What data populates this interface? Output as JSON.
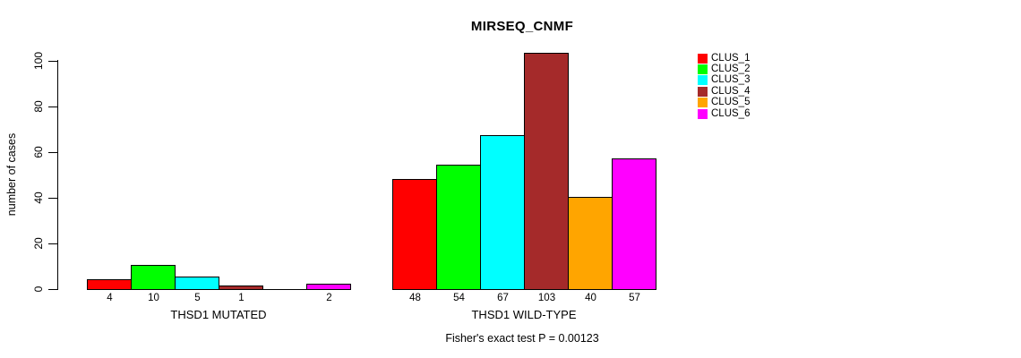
{
  "title": "MIRSEQ_CNMF",
  "footer": "Fisher's exact test P = 0.00123",
  "chart_data": {
    "type": "bar",
    "title": "MIRSEQ_CNMF",
    "xlabel": "",
    "ylabel": "number of cases",
    "ylim": [
      0,
      100
    ],
    "yticks": [
      0,
      20,
      40,
      60,
      80,
      100
    ],
    "grid": false,
    "legend_position": "top-right",
    "categories": [
      "CLUS_1",
      "CLUS_2",
      "CLUS_3",
      "CLUS_4",
      "CLUS_5",
      "CLUS_6"
    ],
    "colors": [
      "#ff0000",
      "#00ff00",
      "#00ffff",
      "#a52a2a",
      "#ffa500",
      "#ff00ff"
    ],
    "groups": [
      {
        "label": "THSD1 MUTATED",
        "values": [
          4,
          10,
          5,
          1,
          0,
          2
        ]
      },
      {
        "label": "THSD1 WILD-TYPE",
        "values": [
          48,
          54,
          67,
          103,
          40,
          57
        ]
      }
    ],
    "bar_value_labels_shown": true,
    "zero_values_hidden": true,
    "annotation": "Fisher's exact test P = 0.00123"
  }
}
